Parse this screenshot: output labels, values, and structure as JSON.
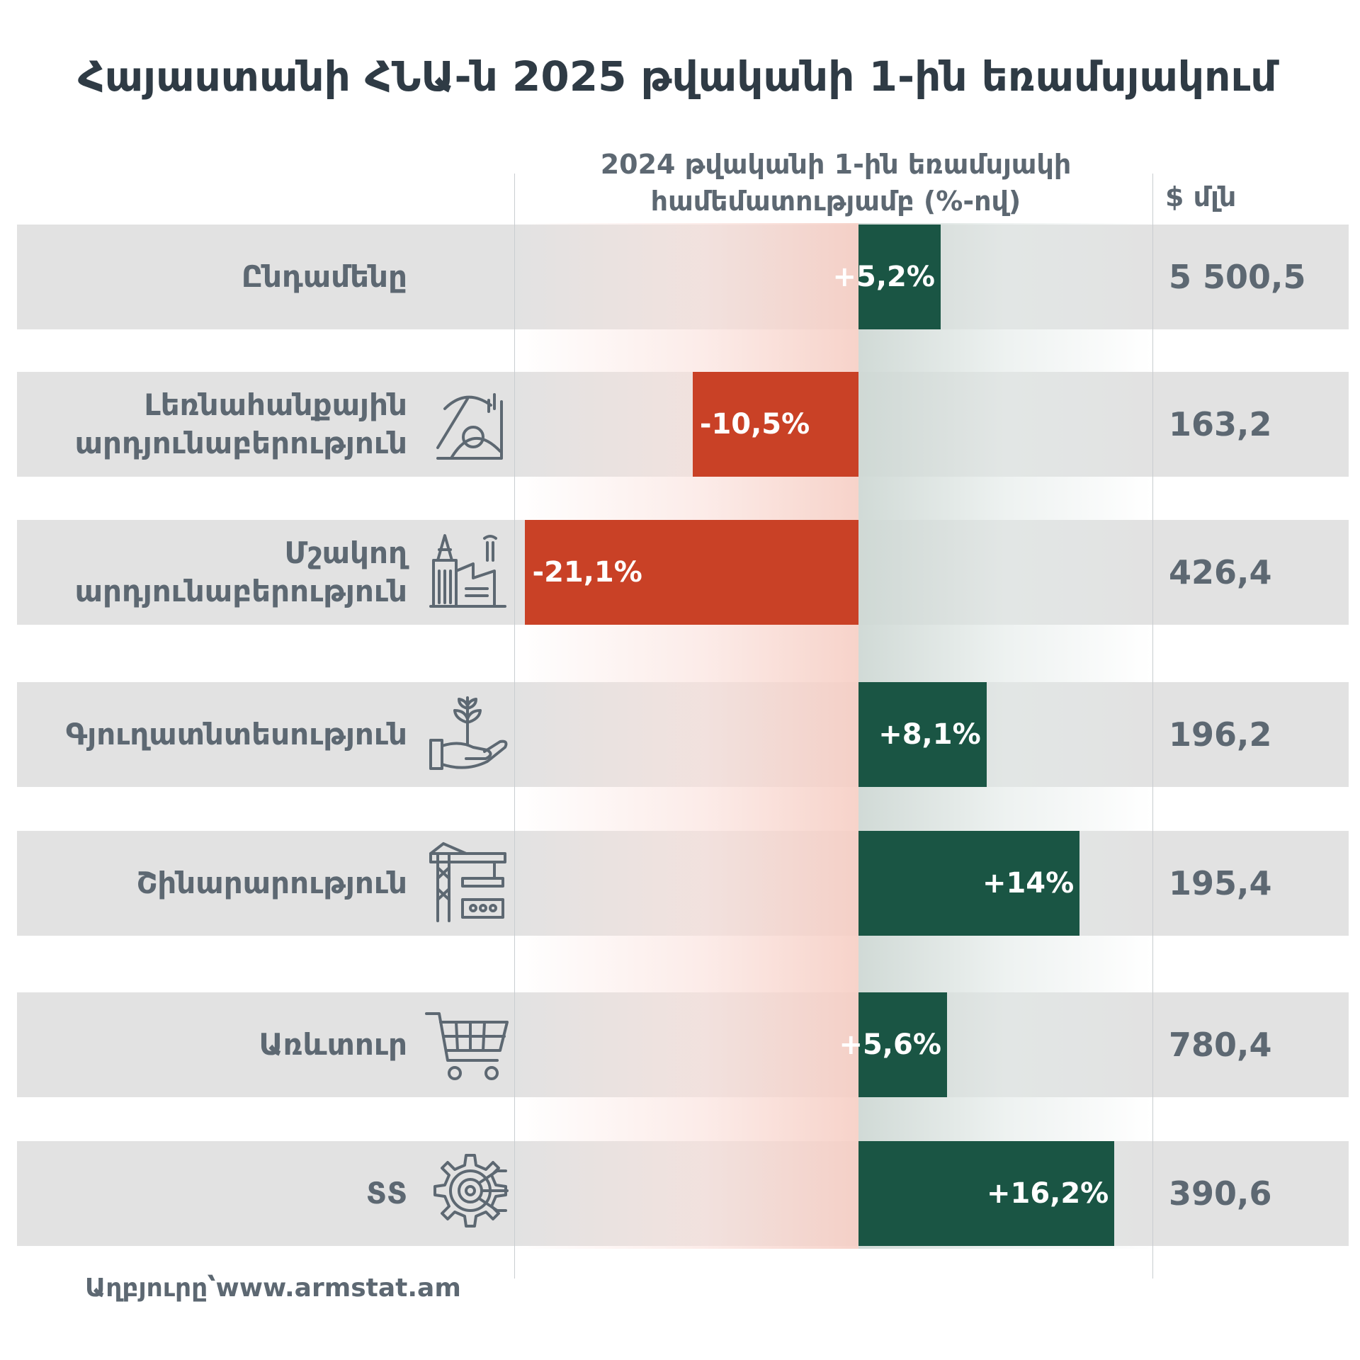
{
  "title": "Հայաստանի ՀՆԱ-ն 2025 թվականի 1-ին եռամսյակում",
  "source": "Աղբյուրը՝www.armstat.am",
  "colors": {
    "positive": "#1a5544",
    "negative": "#c94126",
    "row_bg": "#e2e2e2",
    "text": "#5d6872"
  },
  "chart_data": {
    "type": "bar",
    "orientation": "horizontal-diverging",
    "title": "Հայաստանի ՀՆԱ-ն 2025 թվականի 1-ին եռամսյակում",
    "change_header": "2024 թվականի 1-ին եռամսյակի համեմատությամբ (%-ով)",
    "value_header": "$ մլն",
    "xlim": [
      -21.1,
      16.2
    ],
    "grid": false,
    "rows": [
      {
        "category": "Ընդամենը",
        "icon": "",
        "change": 5.2,
        "change_label": "+5,2%",
        "value": "5 500,5"
      },
      {
        "category": "Լեռնահանքային արդյունաբերություն",
        "icon": "mining-icon",
        "change": -10.5,
        "change_label": "-10,5%",
        "value": "163,2"
      },
      {
        "category": "Մշակող արդյունաբերություն",
        "icon": "factory-icon",
        "change": -21.1,
        "change_label": "-21,1%",
        "value": "426,4"
      },
      {
        "category": "Գյուղատնտեսություն",
        "icon": "plant-in-hand-icon",
        "change": 8.1,
        "change_label": "+8,1%",
        "value": "196,2"
      },
      {
        "category": "Շինարարություն",
        "icon": "crane-icon",
        "change": 14,
        "change_label": "+14%",
        "value": "195,4"
      },
      {
        "category": "Առևտուր",
        "icon": "shopping-cart-icon",
        "change": 5.6,
        "change_label": "+5,6%",
        "value": "780,4"
      },
      {
        "category": "ՏՏ",
        "icon": "gear-circuit-icon",
        "change": 16.2,
        "change_label": "+16,2%",
        "value": "390,6"
      }
    ]
  }
}
